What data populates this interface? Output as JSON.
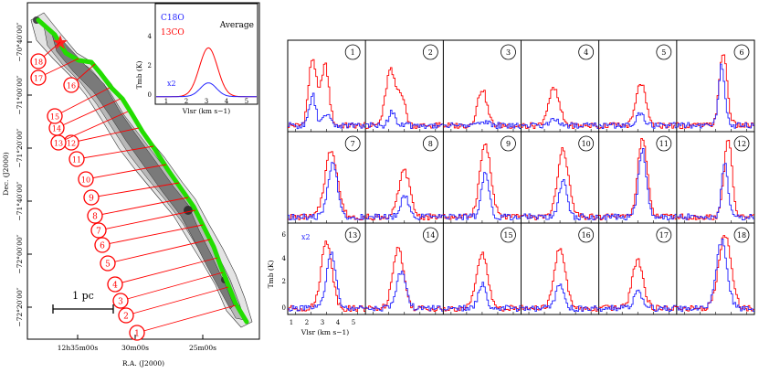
{
  "map": {
    "dec_axis_label": "Dec. (J2000)",
    "ra_axis_label": "R.A. (J2000)",
    "dec_ticks": [
      "−70°40′00″",
      "−71°00′00″",
      "−71°20′00″",
      "−71°40′00″",
      "−72°00′00″",
      "−72°20′00″"
    ],
    "ra_ticks": [
      "12h35m00s",
      "30m00s",
      "25m00s"
    ],
    "scale_bar": "1 pc",
    "positions": [
      "1",
      "2",
      "3",
      "4",
      "5",
      "6",
      "7",
      "8",
      "9",
      "10",
      "11",
      "12",
      "13",
      "14",
      "15",
      "16",
      "17",
      "18"
    ],
    "colors": {
      "spine": "#22dd00",
      "markers": "#ff0000"
    }
  },
  "inset": {
    "legend_c18o": "C18O",
    "legend_13co": "13CO",
    "title": "Average",
    "scale_note": "x2",
    "ylabel": "Tmb (K)",
    "xlabel": "Vlsr (km s−1)",
    "x_ticks": [
      "1",
      "2",
      "3",
      "4",
      "5"
    ],
    "y_ticks": [
      "0",
      "2",
      "4"
    ]
  },
  "grid": {
    "ylabel": "Tmb (K)",
    "xlabel": "Vlsr (km s−1)",
    "x_ticks": [
      "1",
      "2",
      "3",
      "4",
      "5"
    ],
    "y_ticks": [
      "0",
      "2",
      "4",
      "6"
    ],
    "scale_note": "x2",
    "panels": [
      "1",
      "2",
      "3",
      "4",
      "5",
      "6",
      "7",
      "8",
      "9",
      "10",
      "11",
      "12",
      "13",
      "14",
      "15",
      "16",
      "17",
      "18"
    ],
    "colors": {
      "13co": "#ff0000",
      "c18o": "#2222ff"
    }
  },
  "chart_data": {
    "type": "line",
    "x_label": "Vlsr (km s−1)",
    "y_label": "Tmb (K)",
    "xlim": [
      0.5,
      5.5
    ],
    "ylim": [
      -0.5,
      7
    ],
    "average": {
      "13co": {
        "center": 3.1,
        "peak": 3.2,
        "width": 0.45
      },
      "c18o_x2": {
        "center": 3.1,
        "peak": 0.9,
        "width": 0.4
      }
    },
    "series": [
      {
        "panel": "1",
        "co13": [
          {
            "v": 2.1,
            "a": 5.5,
            "w": 0.25
          },
          {
            "v": 2.9,
            "a": 5.0,
            "w": 0.25
          }
        ],
        "c18o": [
          {
            "v": 2.1,
            "a": 2.5,
            "w": 0.2
          },
          {
            "v": 3.0,
            "a": 1.0,
            "w": 0.2
          }
        ]
      },
      {
        "panel": "2",
        "co13": [
          {
            "v": 2.1,
            "a": 4.5,
            "w": 0.3
          },
          {
            "v": 2.8,
            "a": 2.5,
            "w": 0.25
          }
        ],
        "c18o": [
          {
            "v": 2.2,
            "a": 1.2,
            "w": 0.2
          }
        ]
      },
      {
        "panel": "3",
        "co13": [
          {
            "v": 3.0,
            "a": 3.0,
            "w": 0.3
          }
        ],
        "c18o": [
          {
            "v": 3.0,
            "a": 0.4,
            "w": 0.3
          }
        ]
      },
      {
        "panel": "4",
        "co13": [
          {
            "v": 2.6,
            "a": 3.0,
            "w": 0.35
          }
        ],
        "c18o": [
          {
            "v": 2.6,
            "a": 0.4,
            "w": 0.3
          }
        ]
      },
      {
        "panel": "5",
        "co13": [
          {
            "v": 3.2,
            "a": 3.5,
            "w": 0.3
          }
        ],
        "c18o": [
          {
            "v": 3.2,
            "a": 1.0,
            "w": 0.25
          }
        ]
      },
      {
        "panel": "6",
        "co13": [
          {
            "v": 3.5,
            "a": 6.0,
            "w": 0.25
          }
        ],
        "c18o": [
          {
            "v": 3.4,
            "a": 5.0,
            "w": 0.2
          }
        ]
      },
      {
        "panel": "7",
        "co13": [
          {
            "v": 3.3,
            "a": 5.5,
            "w": 0.4
          }
        ],
        "c18o": [
          {
            "v": 3.4,
            "a": 4.5,
            "w": 0.3
          }
        ]
      },
      {
        "panel": "8",
        "co13": [
          {
            "v": 3.0,
            "a": 3.8,
            "w": 0.35
          }
        ],
        "c18o": [
          {
            "v": 3.0,
            "a": 1.8,
            "w": 0.25
          }
        ]
      },
      {
        "panel": "9",
        "co13": [
          {
            "v": 3.2,
            "a": 6.0,
            "w": 0.35
          }
        ],
        "c18o": [
          {
            "v": 3.2,
            "a": 3.5,
            "w": 0.25
          }
        ]
      },
      {
        "panel": "10",
        "co13": [
          {
            "v": 3.2,
            "a": 5.5,
            "w": 0.35
          }
        ],
        "c18o": [
          {
            "v": 3.2,
            "a": 3.0,
            "w": 0.25
          }
        ]
      },
      {
        "panel": "11",
        "co13": [
          {
            "v": 3.3,
            "a": 6.5,
            "w": 0.3
          }
        ],
        "c18o": [
          {
            "v": 3.3,
            "a": 5.5,
            "w": 0.25
          }
        ]
      },
      {
        "panel": "12",
        "co13": [
          {
            "v": 3.8,
            "a": 6.5,
            "w": 0.25
          }
        ],
        "c18o": [
          {
            "v": 3.6,
            "a": 4.5,
            "w": 0.2
          }
        ]
      },
      {
        "panel": "13",
        "co13": [
          {
            "v": 3.0,
            "a": 5.5,
            "w": 0.35
          }
        ],
        "c18o": [
          {
            "v": 3.3,
            "a": 4.5,
            "w": 0.3
          }
        ]
      },
      {
        "panel": "14",
        "co13": [
          {
            "v": 2.6,
            "a": 5.0,
            "w": 0.35
          }
        ],
        "c18o": [
          {
            "v": 2.8,
            "a": 3.0,
            "w": 0.3
          }
        ]
      },
      {
        "panel": "15",
        "co13": [
          {
            "v": 3.0,
            "a": 4.5,
            "w": 0.35
          }
        ],
        "c18o": [
          {
            "v": 3.0,
            "a": 2.0,
            "w": 0.25
          }
        ]
      },
      {
        "panel": "16",
        "co13": [
          {
            "v": 3.0,
            "a": 5.0,
            "w": 0.35
          }
        ],
        "c18o": [
          {
            "v": 3.0,
            "a": 2.0,
            "w": 0.25
          }
        ]
      },
      {
        "panel": "17",
        "co13": [
          {
            "v": 3.0,
            "a": 4.0,
            "w": 0.35
          }
        ],
        "c18o": [
          {
            "v": 3.0,
            "a": 1.5,
            "w": 0.25
          }
        ]
      },
      {
        "panel": "18",
        "co13": [
          {
            "v": 3.6,
            "a": 6.0,
            "w": 0.4
          }
        ],
        "c18o": [
          {
            "v": 3.4,
            "a": 5.5,
            "w": 0.35
          }
        ]
      }
    ]
  }
}
